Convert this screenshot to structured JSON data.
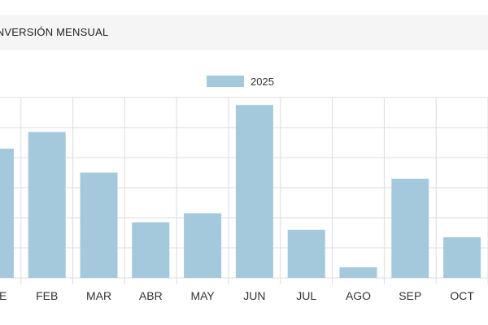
{
  "header": {
    "title": "INVERSIÓN MENSUAL"
  },
  "colors": {
    "bar": "#a4c8dc",
    "grid": "#dddddd",
    "header_bg": "#f5f5f5"
  },
  "chart_data": {
    "type": "bar",
    "title": "",
    "xlabel": "",
    "ylabel": "",
    "categories": [
      "ENE",
      "FEB",
      "MAR",
      "ABR",
      "MAY",
      "JUN",
      "JUL",
      "AGO",
      "SEP",
      "OCT"
    ],
    "series": [
      {
        "name": "2025",
        "values": [
          86,
          97,
          70,
          37,
          43,
          115,
          32,
          7,
          66,
          27
        ]
      }
    ],
    "ylim": [
      0,
      120
    ],
    "grid": true,
    "legend": "top-center"
  }
}
